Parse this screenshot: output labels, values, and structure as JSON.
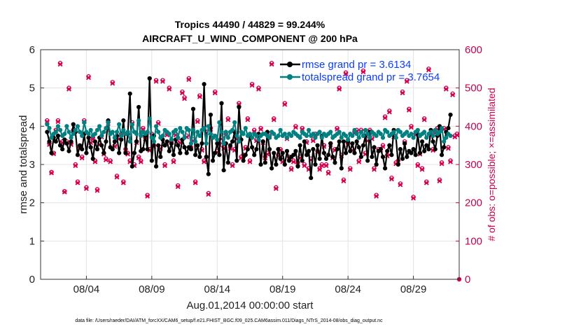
{
  "chart_data": {
    "type": "line",
    "title_line1": "Tropics 44490 / 44829 = 99.244%",
    "title_line2": "AIRCRAFT_U_WIND_COMPONENT @ 200 hPa",
    "xlabel": "Aug.01,2014 00:00:00 start",
    "ylabel_left": "rmse and totalspread",
    "ylabel_right": "# of obs: o=possible; ×=assimilated",
    "xlim": [
      0,
      32
    ],
    "ylim_left": [
      0,
      6
    ],
    "ylim_right": [
      0,
      600
    ],
    "xticks": [
      3.5,
      8.5,
      13.5,
      18.5,
      23.5,
      28.5
    ],
    "xtick_labels": [
      "08/04",
      "08/09",
      "08/14",
      "08/19",
      "08/24",
      "08/29"
    ],
    "yticks_left": [
      0,
      1,
      2,
      3,
      4,
      5,
      6
    ],
    "yticks_left_labels": [
      "0",
      "1",
      "2",
      "3",
      "4",
      "5",
      "6"
    ],
    "yticks_right": [
      0,
      100,
      200,
      300,
      400,
      500,
      600
    ],
    "yticks_right_labels": [
      "0",
      "100",
      "200",
      "300",
      "400",
      "500",
      "600"
    ],
    "footer": "data file: /Users/raeder/DAI/ATM_forcXX/CAM6_setup/f.e21.FHIST_BGC.f09_025.CAM6assim.011/Diags_NTrS_2014-08/obs_diag_output.nc",
    "colors": {
      "rmse": "#000000",
      "spread": "#008080",
      "obs": "#d6004f",
      "legend_text": "#0a3cff"
    },
    "series": [
      {
        "name": "rmse grand pr = 3.6134",
        "y_axis": "left",
        "values": [
          3.85,
          3.6,
          3.3,
          3.7,
          3.6,
          3.75,
          3.5,
          3.4,
          3.65,
          3.55,
          3.35,
          3.6,
          4.05,
          3.85,
          3.25,
          3.5,
          3.4,
          3.8,
          3.3,
          3.7,
          3.45,
          3.15,
          3.6,
          3.4,
          3.7,
          3.5,
          3.3,
          3.6,
          4.15,
          3.45,
          3.4,
          3.6,
          3.75,
          3.3,
          3.65,
          4.15,
          3.3,
          3.8,
          4.85,
          2.95,
          3.3,
          3.6,
          4.5,
          3.35,
          3.4,
          3.75,
          3.4,
          5.25,
          3.1,
          3.75,
          2.95,
          3.5,
          3.2,
          3.65,
          3.5,
          3.6,
          3.35,
          3.55,
          3.25,
          3.65,
          3.5,
          3.3,
          3.65,
          3.45,
          3.3,
          3.45,
          3.4,
          4.45,
          3.25,
          3.5,
          3.2,
          3.55,
          5.1,
          3.2,
          2.75,
          4.3,
          3.1,
          3.3,
          3.55,
          3.25,
          4.6,
          2.85,
          3.55,
          3.05,
          3.5,
          3.6,
          3.85,
          3.1,
          4.5,
          3.65,
          3.1,
          3.25,
          3.4,
          3.75,
          3.45,
          3.25,
          3.4,
          3.8,
          3.0,
          3.6,
          3.05,
          3.85,
          3.4,
          2.9,
          3.3,
          3.0,
          3.4,
          3.15,
          3.3,
          3.0,
          3.35,
          3.1,
          3.2,
          3.25,
          3.35,
          2.95,
          3.5,
          3.1,
          3.6,
          3.25,
          3.35,
          2.65,
          3.4,
          3.0,
          3.5,
          3.15,
          3.75,
          3.3,
          3.15,
          3.25,
          3.55,
          3.2,
          3.05,
          3.4,
          3.6,
          2.9,
          3.6,
          3.3,
          3.6,
          3.35,
          3.55,
          3.3,
          3.6,
          3.45,
          3.2,
          3.5,
          3.75,
          3.1,
          3.85,
          3.2,
          3.45,
          3.0,
          3.35,
          3.4,
          3.2,
          2.9,
          3.35,
          3.5,
          3.25,
          3.9,
          3.7,
          3.0,
          3.4,
          3.15,
          3.55,
          3.2,
          3.35,
          3.3,
          3.4,
          3.25,
          3.8,
          3.3,
          3.6,
          3.35,
          3.5,
          3.4,
          3.9,
          3.6,
          3.4,
          3.75,
          4.0,
          3.25,
          3.45,
          3.85,
          3.95,
          4.3
        ]
      },
      {
        "name": "totalspread grand pr = 3.7654",
        "y_axis": "left",
        "values": [
          4.05,
          3.95,
          3.7,
          3.8,
          3.85,
          4.0,
          3.9,
          3.75,
          3.8,
          4.0,
          3.85,
          3.7,
          3.8,
          3.9,
          4.0,
          3.85,
          3.75,
          4.1,
          3.85,
          3.8,
          3.9,
          3.75,
          3.8,
          3.9,
          4.0,
          3.75,
          3.85,
          3.95,
          4.1,
          3.8,
          3.85,
          3.7,
          3.85,
          4.05,
          3.75,
          3.9,
          3.8,
          3.85,
          3.6,
          4.05,
          3.85,
          3.8,
          4.15,
          3.75,
          3.85,
          3.8,
          3.85,
          4.2,
          3.7,
          3.6,
          4.0,
          3.85,
          3.7,
          3.75,
          3.9,
          3.85,
          3.8,
          3.65,
          3.85,
          3.9,
          3.7,
          3.95,
          3.85,
          3.7,
          3.95,
          3.9,
          3.55,
          3.9,
          3.6,
          3.85,
          3.75,
          3.9,
          3.95,
          3.55,
          4.0,
          3.8,
          3.7,
          3.75,
          3.65,
          4.1,
          3.85,
          3.55,
          3.85,
          3.7,
          3.85,
          3.9,
          4.1,
          3.75,
          3.6,
          3.85,
          3.8,
          3.95,
          3.75,
          3.8,
          3.7,
          3.8,
          3.75,
          3.65,
          3.75,
          3.8,
          3.8,
          3.75,
          3.7,
          3.85,
          3.8,
          3.7,
          3.75,
          3.9,
          3.75,
          3.8,
          3.7,
          3.8,
          3.75,
          3.85,
          3.8,
          3.75,
          3.7,
          3.85,
          3.8,
          3.75,
          3.9,
          3.75,
          3.8,
          3.7,
          3.8,
          3.85,
          3.7,
          3.8,
          3.75,
          3.8,
          3.85,
          3.7,
          3.75,
          3.8,
          3.85,
          3.7,
          3.8,
          3.75,
          3.65,
          3.8,
          3.75,
          3.9,
          3.8,
          3.7,
          3.85,
          3.75,
          3.9,
          3.8,
          3.7,
          3.85,
          3.8,
          3.75,
          3.85,
          3.8,
          3.7,
          3.9,
          3.85,
          3.75,
          3.8,
          3.85,
          3.7,
          3.9,
          3.85,
          3.75,
          3.8,
          3.85,
          3.75,
          3.8,
          3.7,
          3.85,
          3.9,
          3.75,
          3.8,
          3.85,
          3.7,
          3.8,
          3.85,
          3.75,
          3.9,
          3.8,
          3.85,
          3.95,
          3.6,
          3.7,
          3.8,
          3.75
        ]
      },
      {
        "name": "obs possible (o)",
        "y_axis": "right",
        "values": [
          415,
          355,
          280,
          330,
          390,
          415,
          565,
          360,
          230,
          360,
          500,
          355,
          390,
          300,
          255,
          345,
          320,
          415,
          240,
          530,
          360,
          370,
          310,
          235,
          355,
          375,
          330,
          315,
          410,
          310,
          515,
          350,
          270,
          370,
          380,
          255,
          340,
          330,
          310,
          410,
          300,
          360,
          320,
          310,
          395,
          370,
          220,
          340,
          380,
          350,
          520,
          410,
          345,
          520,
          300,
          380,
          500,
          360,
          310,
          380,
          245,
          360,
          490,
          475,
          375,
          525,
          345,
          365,
          255,
          415,
          480,
          340,
          310,
          385,
          225,
          395,
          375,
          490,
          335,
          355,
          370,
          345,
          380,
          420,
          345,
          300,
          340,
          370,
          460,
          320,
          325,
          345,
          420,
          310,
          510,
          390,
          365,
          500,
          395,
          360,
          320,
          330,
          375,
          565,
          420,
          240,
          325,
          340,
          310,
          460,
          370,
          320,
          290,
          310,
          400,
          305,
          320,
          395,
          300,
          360,
          290,
          315,
          365,
          380,
          335,
          290,
          300,
          350,
          300,
          280,
          355,
          320,
          340,
          395,
          500,
          325,
          260,
          540,
          355,
          290,
          340,
          385,
          390,
          310,
          390,
          545,
          330,
          365,
          390,
          370,
          290,
          220,
          340,
          340,
          350,
          425,
          325,
          440,
          265,
          375,
          305,
          310,
          250,
          490,
          360,
          520,
          445,
          400,
          215,
          380,
          300,
          330,
          290,
          420,
          255,
          550,
          380,
          340,
          385,
          395,
          260,
          305,
          395,
          500,
          345,
          310,
          485,
          375,
          380
        ]
      },
      {
        "name": "obs assimilated (x)",
        "y_axis": "right",
        "values": [
          412,
          352,
          278,
          328,
          388,
          412,
          562,
          357,
          228,
          357,
          497,
          352,
          387,
          297,
          252,
          342,
          317,
          412,
          237,
          527,
          357,
          367,
          307,
          232,
          352,
          372,
          327,
          312,
          407,
          307,
          512,
          347,
          267,
          367,
          377,
          252,
          337,
          327,
          307,
          407,
          297,
          357,
          317,
          307,
          392,
          367,
          217,
          337,
          377,
          347,
          517,
          407,
          342,
          517,
          297,
          377,
          497,
          357,
          307,
          377,
          242,
          357,
          487,
          472,
          372,
          522,
          342,
          362,
          252,
          412,
          477,
          337,
          307,
          382,
          222,
          392,
          372,
          487,
          332,
          352,
          367,
          342,
          377,
          417,
          342,
          297,
          337,
          367,
          457,
          317,
          322,
          342,
          417,
          307,
          507,
          387,
          362,
          497,
          392,
          357,
          317,
          327,
          372,
          562,
          417,
          237,
          322,
          337,
          307,
          457,
          367,
          317,
          287,
          307,
          397,
          302,
          317,
          392,
          297,
          357,
          287,
          312,
          362,
          377,
          332,
          287,
          297,
          347,
          297,
          277,
          352,
          317,
          337,
          392,
          497,
          322,
          257,
          537,
          352,
          287,
          337,
          382,
          387,
          307,
          387,
          542,
          327,
          362,
          387,
          367,
          287,
          217,
          337,
          337,
          347,
          422,
          322,
          437,
          262,
          372,
          302,
          307,
          247,
          487,
          357,
          517,
          442,
          397,
          212,
          377,
          297,
          327,
          287,
          417,
          252,
          547,
          377,
          337,
          382,
          392,
          257,
          302,
          392,
          497,
          342,
          307,
          482,
          372,
          377
        ]
      }
    ],
    "legend": {
      "rmse_label": "rmse grand pr = 3.6134",
      "spread_label": "totalspread grand pr = 3.7654",
      "placement": "top-right"
    }
  }
}
